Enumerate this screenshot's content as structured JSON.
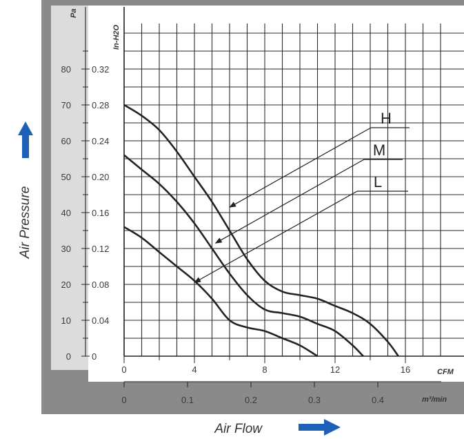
{
  "chart_data": {
    "type": "line",
    "xlabel": "Air Flow",
    "ylabel": "Air Pressure",
    "x_unit_primary": "CFM",
    "x_unit_secondary": "m³/min",
    "y_unit_primary": "Pa",
    "y_unit_secondary": "In-H2O",
    "xlim": [
      0,
      18
    ],
    "ylim": [
      0,
      90
    ],
    "x_ticks": [
      "0",
      "4",
      "8",
      "12",
      "16"
    ],
    "x_ticks_secondary": [
      "0",
      "0.1",
      "0.2",
      "0.3",
      "0.4"
    ],
    "y_ticks": [
      "0",
      "10",
      "20",
      "30",
      "40",
      "50",
      "60",
      "70",
      "80"
    ],
    "y_ticks_secondary": [
      "0",
      "0.04",
      "0.08",
      "0.12",
      "0.16",
      "0.20",
      "0.24",
      "0.28",
      "0.32"
    ],
    "grid": true,
    "series": [
      {
        "name": "H",
        "x": [
          0,
          1,
          2,
          3,
          4,
          5,
          6,
          7,
          8,
          9,
          10,
          11,
          12,
          13,
          14,
          15,
          15.6
        ],
        "y": [
          70,
          67,
          63,
          57,
          50,
          43,
          35,
          27,
          21,
          18,
          17,
          16,
          14,
          12,
          9,
          4,
          0
        ]
      },
      {
        "name": "M",
        "x": [
          0,
          1,
          2,
          3,
          4,
          5,
          6,
          7,
          8,
          9,
          10,
          11,
          12,
          13,
          13.6
        ],
        "y": [
          56,
          52,
          48,
          43,
          37,
          30,
          23,
          17,
          13,
          12,
          11,
          9,
          7,
          3,
          0
        ]
      },
      {
        "name": "L",
        "x": [
          0,
          1,
          2,
          3,
          4,
          5,
          6,
          7,
          8,
          9,
          10,
          11
        ],
        "y": [
          36,
          33,
          29,
          25,
          21,
          16,
          10,
          8,
          7,
          5,
          3,
          0
        ]
      }
    ],
    "annotations": [
      "H",
      "M",
      "L"
    ]
  }
}
